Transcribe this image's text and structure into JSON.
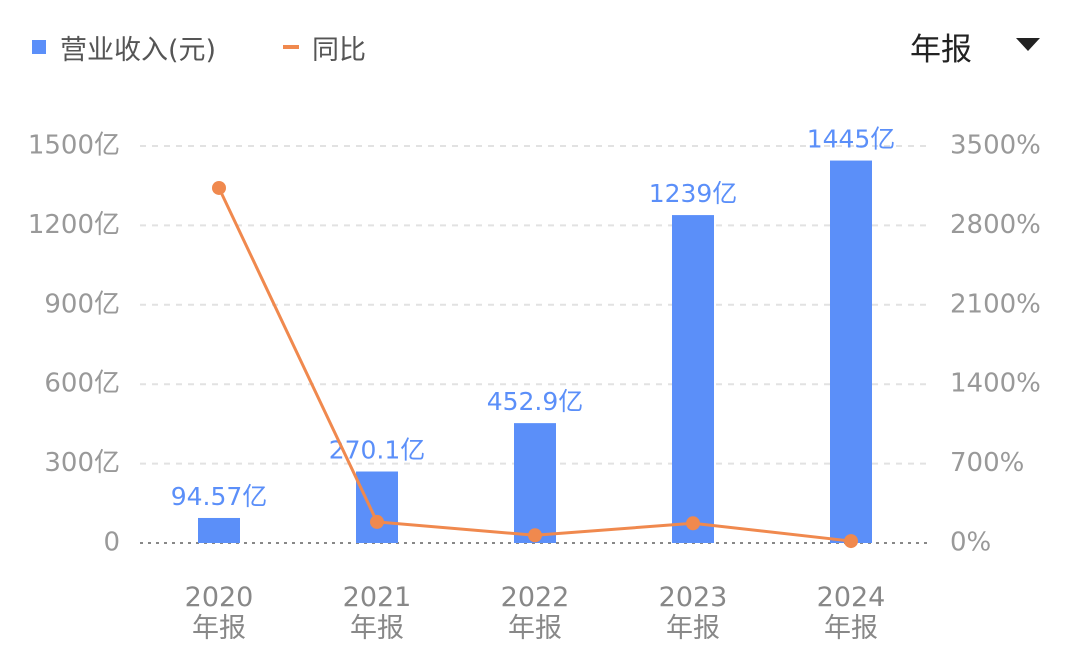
{
  "controls": {
    "period": "年报"
  },
  "chart_data": {
    "type": "bar_line",
    "categories": [
      "2020年报",
      "2021年报",
      "2022年报",
      "2023年报",
      "2024年报"
    ],
    "series": [
      {
        "name": "营业收入(元)",
        "type": "bar",
        "color": "#5b8ff9",
        "values": [
          94.57,
          270.1,
          452.9,
          1239,
          1445
        ],
        "value_labels": [
          "94.57亿",
          "270.1亿",
          "452.9亿",
          "1239亿",
          "1445亿"
        ]
      },
      {
        "name": "同比",
        "type": "line",
        "axis": "y2",
        "color": "#f0894e",
        "values": [
          3130,
          186,
          68,
          174,
          17
        ]
      }
    ],
    "ylim": [
      0,
      1500
    ],
    "yticks": [
      0,
      {
        "value": 300,
        "label": "300亿"
      },
      {
        "value": 600,
        "label": "600亿"
      },
      {
        "value": 900,
        "label": "900亿"
      },
      {
        "value": 1200,
        "label": "1200亿"
      },
      {
        "value": 1500,
        "label": "1500亿"
      }
    ],
    "y2lim": [
      0,
      3500
    ],
    "y2ticks": [
      {
        "value": 0,
        "label": "0%"
      },
      {
        "value": 700,
        "label": "700%"
      },
      {
        "value": 1400,
        "label": "1400%"
      },
      {
        "value": 2100,
        "label": "2100%"
      },
      {
        "value": 2800,
        "label": "2800%"
      },
      {
        "value": 3500,
        "label": "3500%"
      }
    ],
    "grid": true
  }
}
